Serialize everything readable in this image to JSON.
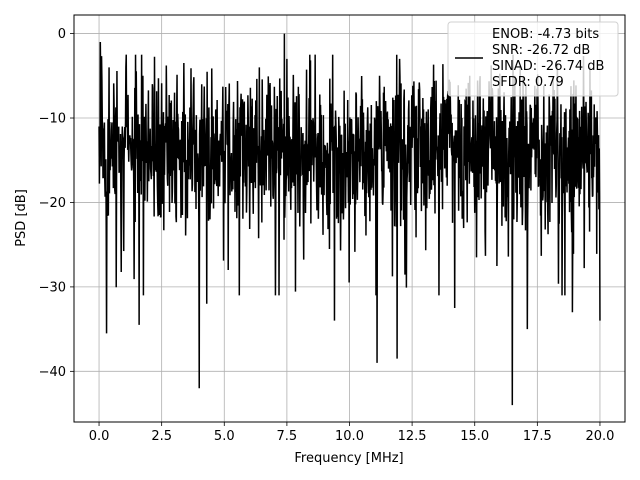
{
  "chart_data": {
    "type": "line",
    "xlabel": "Frequency [MHz]",
    "ylabel": "PSD [dB]",
    "xlim": [
      -1.0,
      21.0
    ],
    "ylim": [
      -46.0,
      2.2
    ],
    "xticks": [
      0.0,
      2.5,
      5.0,
      7.5,
      10.0,
      12.5,
      15.0,
      17.5,
      20.0
    ],
    "xtick_labels": [
      "0.0",
      "2.5",
      "5.0",
      "7.5",
      "10.0",
      "12.5",
      "15.0",
      "17.5",
      "20.0"
    ],
    "yticks": [
      0,
      -10,
      -20,
      -30,
      -40
    ],
    "ytick_labels": [
      "0",
      "−10",
      "−20",
      "−30",
      "−40"
    ],
    "grid": true,
    "legend_position": "upper right",
    "line_color": "#000000",
    "series": [
      {
        "name": "ENOB: -4.73 bits\nSNR: -26.72 dB\nSINAD: -26.74 dB\nSFDR: 0.79",
        "legend_lines": [
          "ENOB: -4.73 bits",
          "SNR: -26.72 dB",
          "SINAD: -26.74 dB",
          "SFDR: 0.79"
        ],
        "description": "Dense noise-like PSD spanning 0 to 20 MHz, mostly between about -28 and -3 dB, with deep dips near -42 dB (~4.0 MHz), -39 dB (~11.1 MHz), -44 dB (~16.6 MHz) and a peak near 0 dB (~7.4 MHz).",
        "x": [
          0.0,
          0.05,
          0.3,
          0.4,
          1.6,
          1.75,
          4.0,
          4.1,
          4.3,
          5.6,
          6.4,
          7.4,
          7.5,
          9.4,
          11.1,
          11.2,
          11.9,
          12.0,
          14.2,
          14.8,
          16.5,
          16.6,
          17.1,
          18.3,
          18.9,
          19.6,
          20.0
        ],
        "values": [
          -11.0,
          -1.0,
          -35.5,
          -4.0,
          -34.5,
          -5.0,
          -42.0,
          -6.0,
          -32.0,
          -31.0,
          -4.0,
          0.0,
          -3.0,
          -34.0,
          -39.0,
          -5.0,
          -38.5,
          -3.0,
          -32.5,
          -5.0,
          -44.0,
          -5.0,
          -35.0,
          -3.5,
          -33.0,
          -4.0,
          -34.0
        ]
      }
    ]
  }
}
